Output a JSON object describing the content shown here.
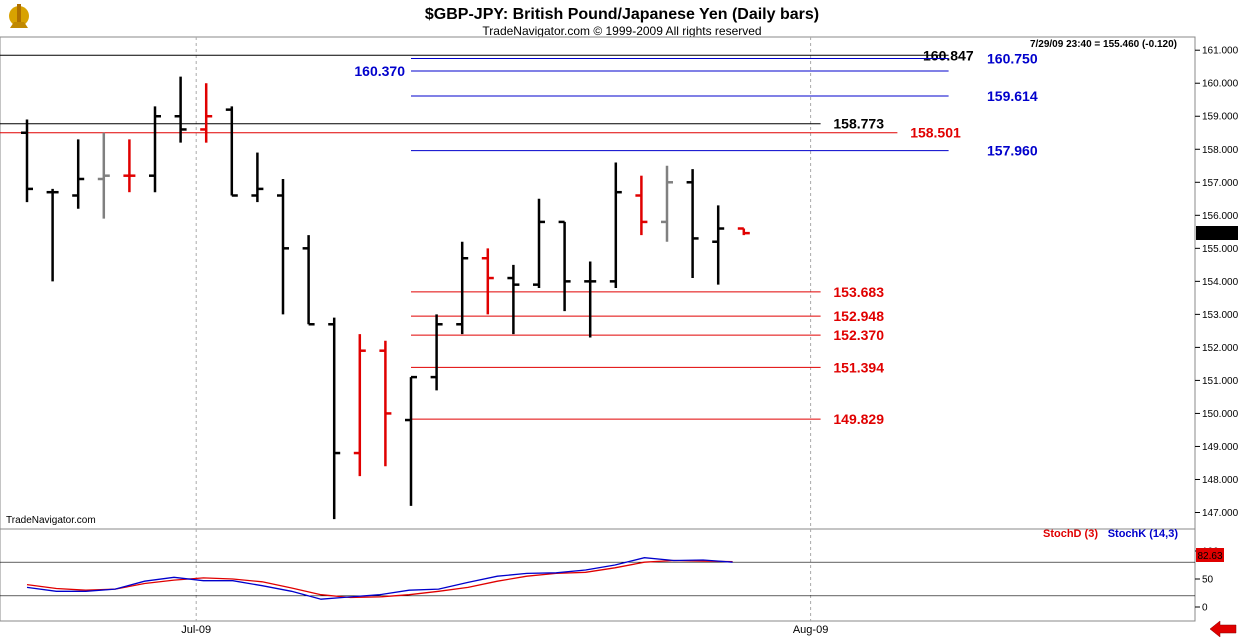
{
  "header": {
    "title": "$GBP-JPY:  British Pound/Japanese Yen  (Daily bars)",
    "copyright": "TradeNavigator.com © 1999-2009 All rights reserved",
    "quote": "7/29/09 23:40 = 155.460 (-0.120)",
    "watermark": "TradeNavigator.com"
  },
  "colors": {
    "black": "#000000",
    "red": "#e00000",
    "gray": "#808080",
    "blue": "#0000cc",
    "grid": "#aaaaaa"
  },
  "icons": {
    "logo": "ship-wheel-icon",
    "nav": "left-arrow-icon"
  },
  "chart_data": [
    {
      "type": "ohlc",
      "title": "$GBP-JPY:  British Pound/Japanese Yen  (Daily bars)",
      "ylim": [
        146.5,
        161.4
      ],
      "yticks": [
        147,
        148,
        149,
        150,
        151,
        152,
        153,
        154,
        155,
        156,
        157,
        158,
        159,
        160,
        161
      ],
      "ytick_labels": [
        "147.000",
        "148.000",
        "149.000",
        "150.000",
        "151.000",
        "152.000",
        "153.000",
        "154.000",
        "155.000",
        "156.000",
        "157.000",
        "158.000",
        "159.000",
        "160.000",
        "161.000"
      ],
      "x_labels": [
        {
          "label": "Jul-09",
          "index": 7
        },
        {
          "label": "Aug-09",
          "index": 31
        }
      ],
      "current_price_label": "155.460",
      "bars": [
        {
          "o": 158.5,
          "h": 158.9,
          "l": 156.4,
          "c": 156.8,
          "color": "black"
        },
        {
          "o": 156.7,
          "h": 156.8,
          "l": 154.0,
          "c": 156.7,
          "color": "black"
        },
        {
          "o": 156.6,
          "h": 158.3,
          "l": 156.2,
          "c": 157.1,
          "color": "black"
        },
        {
          "o": 157.1,
          "h": 158.5,
          "l": 155.9,
          "c": 157.2,
          "color": "gray"
        },
        {
          "o": 157.2,
          "h": 158.3,
          "l": 156.7,
          "c": 157.2,
          "color": "red"
        },
        {
          "o": 157.2,
          "h": 159.3,
          "l": 156.7,
          "c": 159.0,
          "color": "black"
        },
        {
          "o": 159.0,
          "h": 160.2,
          "l": 158.2,
          "c": 158.6,
          "color": "black"
        },
        {
          "o": 158.6,
          "h": 160.0,
          "l": 158.2,
          "c": 159.0,
          "color": "red"
        },
        {
          "o": 159.2,
          "h": 159.3,
          "l": 156.6,
          "c": 156.6,
          "color": "black"
        },
        {
          "o": 156.6,
          "h": 157.9,
          "l": 156.4,
          "c": 156.8,
          "color": "black"
        },
        {
          "o": 156.6,
          "h": 157.1,
          "l": 153.0,
          "c": 155.0,
          "color": "black"
        },
        {
          "o": 155.0,
          "h": 155.4,
          "l": 152.7,
          "c": 152.7,
          "color": "black"
        },
        {
          "o": 152.7,
          "h": 152.9,
          "l": 146.8,
          "c": 148.8,
          "color": "black"
        },
        {
          "o": 148.8,
          "h": 152.4,
          "l": 148.1,
          "c": 151.9,
          "color": "red"
        },
        {
          "o": 151.9,
          "h": 152.2,
          "l": 148.4,
          "c": 150.0,
          "color": "red"
        },
        {
          "o": 149.8,
          "h": 151.1,
          "l": 147.2,
          "c": 151.1,
          "color": "black"
        },
        {
          "o": 151.1,
          "h": 153.0,
          "l": 150.7,
          "c": 152.7,
          "color": "black"
        },
        {
          "o": 152.7,
          "h": 155.2,
          "l": 152.4,
          "c": 154.7,
          "color": "black"
        },
        {
          "o": 154.7,
          "h": 155.0,
          "l": 153.0,
          "c": 154.1,
          "color": "red"
        },
        {
          "o": 154.1,
          "h": 154.5,
          "l": 152.4,
          "c": 153.9,
          "color": "black"
        },
        {
          "o": 153.9,
          "h": 156.5,
          "l": 153.8,
          "c": 155.8,
          "color": "black"
        },
        {
          "o": 155.8,
          "h": 155.8,
          "l": 153.1,
          "c": 154.0,
          "color": "black"
        },
        {
          "o": 154.0,
          "h": 154.6,
          "l": 152.3,
          "c": 154.0,
          "color": "black"
        },
        {
          "o": 154.0,
          "h": 157.6,
          "l": 153.8,
          "c": 156.7,
          "color": "black"
        },
        {
          "o": 156.6,
          "h": 157.2,
          "l": 155.4,
          "c": 155.8,
          "color": "red"
        },
        {
          "o": 155.8,
          "h": 157.5,
          "l": 155.2,
          "c": 157.0,
          "color": "gray"
        },
        {
          "o": 157.0,
          "h": 157.4,
          "l": 154.1,
          "c": 155.3,
          "color": "black"
        },
        {
          "o": 155.2,
          "h": 156.3,
          "l": 153.9,
          "c": 155.6,
          "color": "black"
        },
        {
          "o": 155.6,
          "h": 155.6,
          "l": 155.4,
          "c": 155.46,
          "color": "red"
        }
      ],
      "levels": [
        {
          "value": 160.847,
          "label": "160.847",
          "color": "black",
          "x0": -2,
          "x1": 36,
          "label_at": 35
        },
        {
          "value": 160.75,
          "label": "160.750",
          "color": "blue",
          "x0": 15,
          "x1": 36,
          "label_at": 37.5
        },
        {
          "value": 160.37,
          "label": "160.370",
          "color": "blue",
          "x0": 15,
          "x1": 36,
          "label_left": true
        },
        {
          "value": 159.614,
          "label": "159.614",
          "color": "blue",
          "x0": 15,
          "x1": 36,
          "label_at": 37.5
        },
        {
          "value": 158.773,
          "label": "158.773",
          "color": "black",
          "x0": -2,
          "x1": 31,
          "label_at": 31.5
        },
        {
          "value": 158.501,
          "label": "158.501",
          "color": "red",
          "x0": -2,
          "x1": 34,
          "label_at": 34.5
        },
        {
          "value": 157.96,
          "label": "157.960",
          "color": "blue",
          "x0": 15,
          "x1": 36,
          "label_at": 37.5
        },
        {
          "value": 153.683,
          "label": "153.683",
          "color": "red",
          "x0": 15,
          "x1": 31,
          "label_at": 31.5
        },
        {
          "value": 152.948,
          "label": "152.948",
          "color": "red",
          "x0": 15,
          "x1": 31,
          "label_at": 31.5
        },
        {
          "value": 152.37,
          "label": "152.370",
          "color": "red",
          "x0": 15,
          "x1": 31,
          "label_at": 31.5
        },
        {
          "value": 151.394,
          "label": "151.394",
          "color": "red",
          "x0": 15,
          "x1": 31,
          "label_at": 31.5
        },
        {
          "value": 149.829,
          "label": "149.829",
          "color": "red",
          "x0": 15,
          "x1": 31,
          "label_at": 31.5
        }
      ]
    },
    {
      "type": "line",
      "legend": [
        "StochD (3)",
        "StochK (14,3)"
      ],
      "ylim": [
        0,
        100
      ],
      "yticks": [
        0,
        50,
        100
      ],
      "ref_lines": [
        80,
        20
      ],
      "current_value_label": "82.63",
      "series": [
        {
          "name": "StochD (3)",
          "color": "red",
          "values": [
            40,
            33,
            30,
            32,
            42,
            48,
            52,
            50,
            45,
            34,
            22,
            17,
            18,
            22,
            28,
            35,
            46,
            55,
            60,
            62,
            70,
            80,
            83,
            82,
            81
          ]
        },
        {
          "name": "StochK (14,3)",
          "color": "blue",
          "values": [
            35,
            28,
            28,
            32,
            46,
            53,
            47,
            47,
            38,
            28,
            14,
            18,
            22,
            30,
            32,
            44,
            55,
            60,
            61,
            66,
            75,
            88,
            83,
            84,
            80
          ]
        }
      ]
    }
  ]
}
